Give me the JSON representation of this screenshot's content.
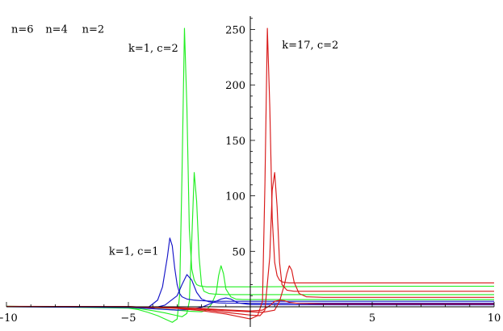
{
  "chart_data": {
    "type": "line",
    "title": "",
    "xlabel": "",
    "ylabel": "",
    "xlim": [
      -10,
      10
    ],
    "ylim": [
      -8,
      262
    ],
    "grid": false,
    "legend": "none",
    "x_ticks": [
      -10,
      -5,
      5,
      10
    ],
    "x_minor_step": 1,
    "y_ticks": [
      50,
      100,
      150,
      200,
      250
    ],
    "y_minor_step": 10,
    "colors": {
      "green": "#22ee22",
      "blue": "#1515c8",
      "red": "#d81818"
    },
    "annotations": [
      {
        "text": "n=6",
        "x": -9.8,
        "y": 247
      },
      {
        "text": "n=4",
        "x": -8.4,
        "y": 247
      },
      {
        "text": "n=2",
        "x": -6.9,
        "y": 247
      },
      {
        "text": "k=1, c=2",
        "x": -5.0,
        "y": 230
      },
      {
        "text": "k=17, c=2",
        "x": 1.3,
        "y": 233
      },
      {
        "text": "k=1, c=1",
        "x": -5.8,
        "y": 47
      }
    ],
    "series": [
      {
        "color": "green",
        "x": [
          -10,
          -5,
          -4.6,
          -4.2,
          -3.8,
          -3.4,
          -3.2,
          -3.0,
          -2.9,
          -2.8,
          -2.7,
          -2.6,
          -2.5,
          -2.4,
          -2.3,
          -2.2,
          -2.1,
          -2.0,
          -1.8,
          -1.5,
          -1.0,
          0,
          5,
          10
        ],
        "y": [
          0.5,
          -1.2,
          -2.5,
          -5,
          -8,
          -12,
          -14,
          -11,
          10,
          120,
          251,
          180,
          70,
          34,
          24,
          20,
          19,
          18.5,
          18,
          18,
          18,
          18,
          18.5,
          18.5
        ]
      },
      {
        "color": "green",
        "x": [
          -10,
          -5,
          -4.5,
          -4.0,
          -3.5,
          -3.0,
          -2.8,
          -2.6,
          -2.5,
          -2.4,
          -2.3,
          -2.2,
          -2.1,
          -2.0,
          -1.9,
          -1.7,
          -1.5,
          -1.0,
          0,
          5,
          10
        ],
        "y": [
          0.3,
          -0.8,
          -1.8,
          -3.5,
          -5.5,
          -8,
          -9,
          -6,
          5,
          60,
          121,
          95,
          45,
          20,
          14,
          12,
          11.5,
          11,
          11,
          11,
          11
        ]
      },
      {
        "color": "green",
        "x": [
          -10,
          -5,
          -4.0,
          -3.0,
          -2.5,
          -2.0,
          -1.8,
          -1.6,
          -1.4,
          -1.3,
          -1.2,
          -1.1,
          -1.0,
          -0.8,
          -0.6,
          -0.3,
          0,
          5,
          10
        ],
        "y": [
          0.2,
          -0.5,
          -1.5,
          -3,
          -4,
          -4.5,
          -3,
          2,
          12,
          28,
          37,
          30,
          16,
          9,
          7,
          6.5,
          6.5,
          6.5,
          6.5
        ]
      },
      {
        "color": "blue",
        "x": [
          -10,
          -5,
          -4.2,
          -3.8,
          -3.6,
          -3.4,
          -3.3,
          -3.2,
          -3.1,
          -3.0,
          -2.9,
          -2.8,
          -2.6,
          -2.3,
          -2.0,
          -1.5,
          -1.0,
          0,
          5,
          10
        ],
        "y": [
          0.2,
          -0.4,
          -0.8,
          6,
          18,
          45,
          62,
          55,
          35,
          20,
          12,
          9,
          7,
          6,
          5.5,
          5,
          5,
          5,
          5,
          5
        ]
      },
      {
        "color": "blue",
        "x": [
          -10,
          -5,
          -4.0,
          -3.5,
          -3.0,
          -2.8,
          -2.6,
          -2.4,
          -2.2,
          -2.0,
          -1.7,
          -1.3,
          -1.0,
          0,
          5,
          10
        ],
        "y": [
          0.1,
          -0.5,
          -1.2,
          1.5,
          10,
          20,
          29,
          24,
          13,
          7,
          4.5,
          3.5,
          3.3,
          3.2,
          3.2,
          3.2
        ]
      },
      {
        "color": "blue",
        "x": [
          -10,
          -5,
          -4.0,
          -3.0,
          -2.5,
          -2.0,
          -1.5,
          -1.2,
          -1.0,
          -0.8,
          -0.5,
          0,
          5,
          10
        ],
        "y": [
          0.1,
          -0.5,
          -1.8,
          -3,
          -2.5,
          -0.5,
          4,
          7,
          8,
          7,
          3.5,
          2,
          1.8,
          1.8
        ]
      },
      {
        "color": "red",
        "x": [
          -10,
          -5,
          -3.0,
          -2.0,
          -1.0,
          0,
          0.3,
          0.5,
          0.6,
          0.7,
          0.8,
          0.9,
          1.0,
          1.1,
          1.2,
          1.3,
          1.4,
          1.6,
          2.0,
          3.0,
          5,
          10
        ],
        "y": [
          0.4,
          0.2,
          -1.5,
          -3.5,
          -6.5,
          -11,
          -8,
          5,
          110,
          251,
          180,
          80,
          40,
          28,
          24,
          22.5,
          22,
          21.5,
          21.5,
          21.5,
          21.5,
          21.5
        ]
      },
      {
        "color": "red",
        "x": [
          -10,
          -5,
          -3.0,
          -2.0,
          -1.0,
          0,
          0.4,
          0.6,
          0.8,
          0.9,
          1.0,
          1.1,
          1.2,
          1.3,
          1.5,
          1.8,
          2.5,
          5,
          10
        ],
        "y": [
          0.3,
          0.1,
          -1.2,
          -2.5,
          -5,
          -7.5,
          -8,
          -3,
          45,
          105,
          121,
          90,
          40,
          20,
          15,
          14,
          14,
          14,
          14
        ]
      },
      {
        "color": "red",
        "x": [
          -10,
          -5,
          -3.0,
          -2.0,
          -1.0,
          0,
          0.5,
          1.0,
          1.2,
          1.4,
          1.5,
          1.6,
          1.7,
          1.8,
          2.0,
          2.3,
          3.0,
          5,
          10
        ],
        "y": [
          0.2,
          0.1,
          -1,
          -2,
          -3.5,
          -4.5,
          -5,
          -3,
          5,
          20,
          30,
          37,
          33,
          22,
          12,
          9,
          8.5,
          8.5,
          8.5
        ]
      },
      {
        "color": "red",
        "x": [
          -10,
          -5,
          -3.0,
          -2.0,
          -1.0,
          0,
          0.5,
          0.8,
          1.0,
          1.2,
          1.4,
          1.6,
          2.0,
          3.0,
          5,
          10
        ],
        "y": [
          0.1,
          0,
          -0.8,
          -1.5,
          -2.8,
          -3.8,
          -3,
          1,
          5,
          6,
          5.5,
          4,
          3,
          2.5,
          2.5,
          2.5
        ]
      }
    ]
  }
}
